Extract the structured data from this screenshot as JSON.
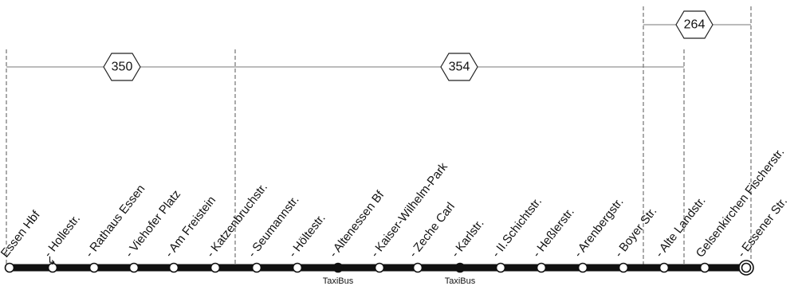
{
  "routes": [
    {
      "number": "350"
    },
    {
      "number": "354"
    },
    {
      "number": "264"
    }
  ],
  "stops": [
    {
      "name": "Essen Hbf",
      "service": ""
    },
    {
      "name": "- Hollestr.",
      "service": ""
    },
    {
      "name": "- Rathaus Essen",
      "service": ""
    },
    {
      "name": "- Viehofer Platz",
      "service": ""
    },
    {
      "name": "- Am Freistein",
      "service": ""
    },
    {
      "name": "- Katzenbruchstr.",
      "service": ""
    },
    {
      "name": "- Seumannstr.",
      "service": ""
    },
    {
      "name": "- Höltestr.",
      "service": ""
    },
    {
      "name": "- Altenessen Bf",
      "service": "TaxiBus"
    },
    {
      "name": "- Kaiser-Wilhelm-Park",
      "service": ""
    },
    {
      "name": "- Zeche Carl",
      "service": ""
    },
    {
      "name": "- Karlstr.",
      "service": "TaxiBus"
    },
    {
      "name": "- II.Schichtstr.",
      "service": ""
    },
    {
      "name": "- Heßlerstr.",
      "service": ""
    },
    {
      "name": "- Arenbergstr.",
      "service": ""
    },
    {
      "name": "- Boyer Str.",
      "service": ""
    },
    {
      "name": "- Alte Landstr.",
      "service": ""
    },
    {
      "name": "Gelsenkirchen Fischerstr.",
      "service": ""
    },
    {
      "name": "- Essener Str.",
      "service": ""
    }
  ],
  "colors": {
    "line": "#111111",
    "guide": "#555555",
    "background": "#ffffff"
  }
}
